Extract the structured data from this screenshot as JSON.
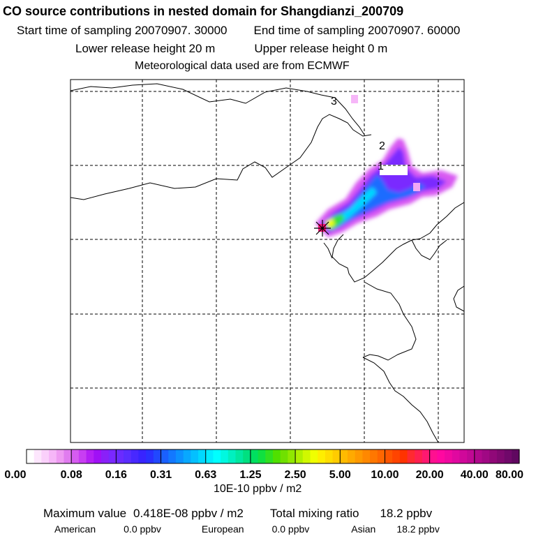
{
  "header": {
    "title": "CO  source contributions in nested domain for Shangdianzi_200709",
    "start_label": "Start time of sampling 20070907. 30000",
    "end_label": "End time of sampling 20070907. 60000",
    "lower_label": "Lower release height   20 m",
    "upper_label": "Upper release height    0 m",
    "met_label": "Meteorological data used are from ECMWF"
  },
  "map": {
    "markers": [
      "1",
      "2",
      "3"
    ],
    "station_marker": "*"
  },
  "legend": {
    "tick_labels": [
      "0.00",
      "0.08",
      "0.16",
      "0.31",
      "0.63",
      "1.25",
      "2.50",
      "5.00",
      "10.00",
      "20.00",
      "40.00",
      "80.00"
    ],
    "colors": [
      "#ffffff",
      "#fde6fd",
      "#fad0fb",
      "#f6b6f8",
      "#ee9af2",
      "#e07cef",
      "#d65cf0",
      "#c83ef2",
      "#b41ff4",
      "#a010f6",
      "#8a20f8",
      "#7a28ff",
      "#6a2bff",
      "#5a2dff",
      "#4828ff",
      "#3824ff",
      "#2a30ff",
      "#2148ff",
      "#1a60ff",
      "#1378ff",
      "#0c90ff",
      "#08a8ff",
      "#04c0ff",
      "#00d8ff",
      "#00ecff",
      "#00ffff",
      "#00f8e0",
      "#00f0c0",
      "#00e8a0",
      "#00e080",
      "#00e060",
      "#10e040",
      "#30e020",
      "#50e000",
      "#70e000",
      "#90e800",
      "#b0f000",
      "#d0f800",
      "#f0ff00",
      "#ffee00",
      "#ffdd00",
      "#ffcc00",
      "#ffbb00",
      "#ffaa00",
      "#ff9900",
      "#ff8800",
      "#ff7700",
      "#ff6600",
      "#ff5500",
      "#ff4400",
      "#ff3300",
      "#ff2a30",
      "#ff2050",
      "#ff1870",
      "#ff1090",
      "#ff08a0",
      "#f008a0",
      "#e008a0",
      "#d0089a",
      "#c00894",
      "#b0088c",
      "#a00884",
      "#900878",
      "#800870",
      "#70086a",
      "#600860"
    ],
    "units": "10E-10 ppbv / m2"
  },
  "summary": {
    "max_label": "Maximum value",
    "max_value": "0.418E-08 ppbv / m2",
    "total_label": "Total mixing ratio",
    "total_value": "18.2 ppbv",
    "regions": [
      {
        "name": "American",
        "value": "0.0 ppbv"
      },
      {
        "name": "European",
        "value": "0.0 ppbv"
      },
      {
        "name": "Asian",
        "value": "18.2 ppbv"
      }
    ]
  }
}
